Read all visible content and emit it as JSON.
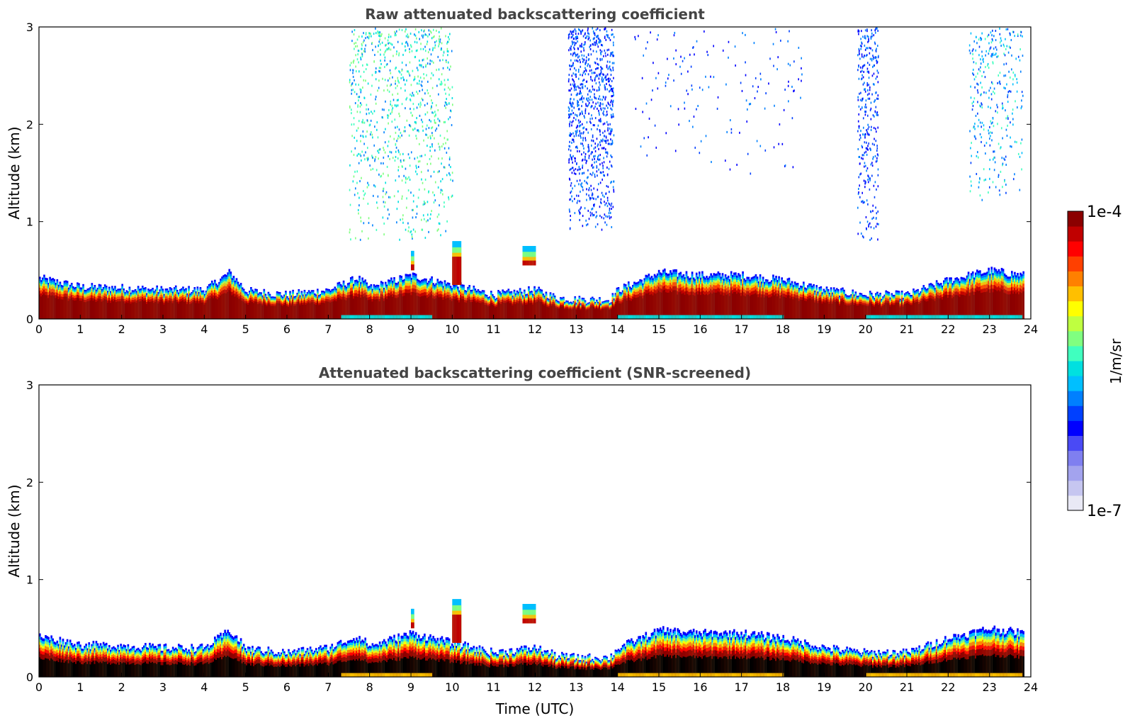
{
  "chart_data": [
    {
      "type": "heatmap",
      "title": "Raw attenuated backscattering coefficient",
      "xlabel": "",
      "ylabel": "Altitude (km)",
      "xlim": [
        0,
        24
      ],
      "ylim": [
        0,
        3
      ],
      "xticks": [
        "0",
        "1",
        "2",
        "3",
        "4",
        "5",
        "6",
        "7",
        "8",
        "9",
        "10",
        "11",
        "12",
        "13",
        "14",
        "15",
        "16",
        "17",
        "18",
        "19",
        "20",
        "21",
        "22",
        "23",
        "24"
      ],
      "yticks": [
        "0",
        "1",
        "2",
        "3"
      ],
      "layer_top_km": [
        {
          "t": 0,
          "h": 0.42
        },
        {
          "t": 1,
          "h": 0.33
        },
        {
          "t": 2,
          "h": 0.32
        },
        {
          "t": 3,
          "h": 0.3
        },
        {
          "t": 4,
          "h": 0.3
        },
        {
          "t": 4.6,
          "h": 0.48
        },
        {
          "t": 5,
          "h": 0.29
        },
        {
          "t": 6,
          "h": 0.25
        },
        {
          "t": 7,
          "h": 0.3
        },
        {
          "t": 7.7,
          "h": 0.42
        },
        {
          "t": 8,
          "h": 0.32
        },
        {
          "t": 9,
          "h": 0.45
        },
        {
          "t": 10,
          "h": 0.35
        },
        {
          "t": 11,
          "h": 0.25
        },
        {
          "t": 12,
          "h": 0.3
        },
        {
          "t": 12.5,
          "h": 0.22
        },
        {
          "t": 13,
          "h": 0.2
        },
        {
          "t": 13.8,
          "h": 0.2
        },
        {
          "t": 14,
          "h": 0.3
        },
        {
          "t": 15,
          "h": 0.48
        },
        {
          "t": 16,
          "h": 0.45
        },
        {
          "t": 17,
          "h": 0.45
        },
        {
          "t": 18,
          "h": 0.4
        },
        {
          "t": 19,
          "h": 0.3
        },
        {
          "t": 20,
          "h": 0.25
        },
        {
          "t": 21,
          "h": 0.25
        },
        {
          "t": 22,
          "h": 0.4
        },
        {
          "t": 23,
          "h": 0.5
        },
        {
          "t": 23.8,
          "h": 0.45
        }
      ],
      "cloud_features": [
        {
          "t_start": 10.0,
          "t_end": 10.2,
          "h_bottom": 0.35,
          "h_top": 0.8
        },
        {
          "t_start": 11.7,
          "t_end": 12.0,
          "h_bottom": 0.55,
          "h_top": 0.75
        },
        {
          "t_start": 9.0,
          "t_end": 9.05,
          "h_bottom": 0.5,
          "h_top": 0.7
        }
      ],
      "noise_regions": [
        {
          "t_start": 7.5,
          "t_end": 10.0,
          "h_bottom": 0.8,
          "h_top": 3.0,
          "density": "high",
          "color": "green-cyan"
        },
        {
          "t_start": 12.8,
          "t_end": 13.9,
          "h_bottom": 0.9,
          "h_top": 3.0,
          "density": "high",
          "color": "blue"
        },
        {
          "t_start": 14.3,
          "t_end": 18.5,
          "h_bottom": 1.5,
          "h_top": 3.0,
          "density": "low",
          "color": "blue"
        },
        {
          "t_start": 22.5,
          "t_end": 23.8,
          "h_bottom": 1.2,
          "h_top": 3.0,
          "density": "medium",
          "color": "blue-cyan"
        },
        {
          "t_start": 19.8,
          "t_end": 20.3,
          "h_bottom": 0.8,
          "h_top": 3.0,
          "density": "medium",
          "color": "blue"
        }
      ]
    },
    {
      "type": "heatmap",
      "title": "Attenuated backscattering coefficient (SNR-screened)",
      "xlabel": "Time (UTC)",
      "ylabel": "Altitude (km)",
      "xlim": [
        0,
        24
      ],
      "ylim": [
        0,
        3
      ],
      "xticks": [
        "0",
        "1",
        "2",
        "3",
        "4",
        "5",
        "6",
        "7",
        "8",
        "9",
        "10",
        "11",
        "12",
        "13",
        "14",
        "15",
        "16",
        "17",
        "18",
        "19",
        "20",
        "21",
        "22",
        "23",
        "24"
      ],
      "yticks": [
        "0",
        "1",
        "2",
        "3"
      ],
      "core_color": "#000000",
      "noise_regions": []
    }
  ],
  "colorbar": {
    "max_label": "1e-4",
    "min_label": "1e-7",
    "unit_label": "1/m/sr",
    "colors": [
      "#e9e9f5",
      "#c6c6f0",
      "#a3a3ee",
      "#7f7ff0",
      "#4a4af5",
      "#0000ff",
      "#0040ff",
      "#0080ff",
      "#00bfff",
      "#00e0e0",
      "#40ffbf",
      "#80ff80",
      "#bfff40",
      "#ffff00",
      "#ffbf00",
      "#ff8000",
      "#ff4000",
      "#ff0000",
      "#c00000",
      "#8b0000"
    ]
  }
}
